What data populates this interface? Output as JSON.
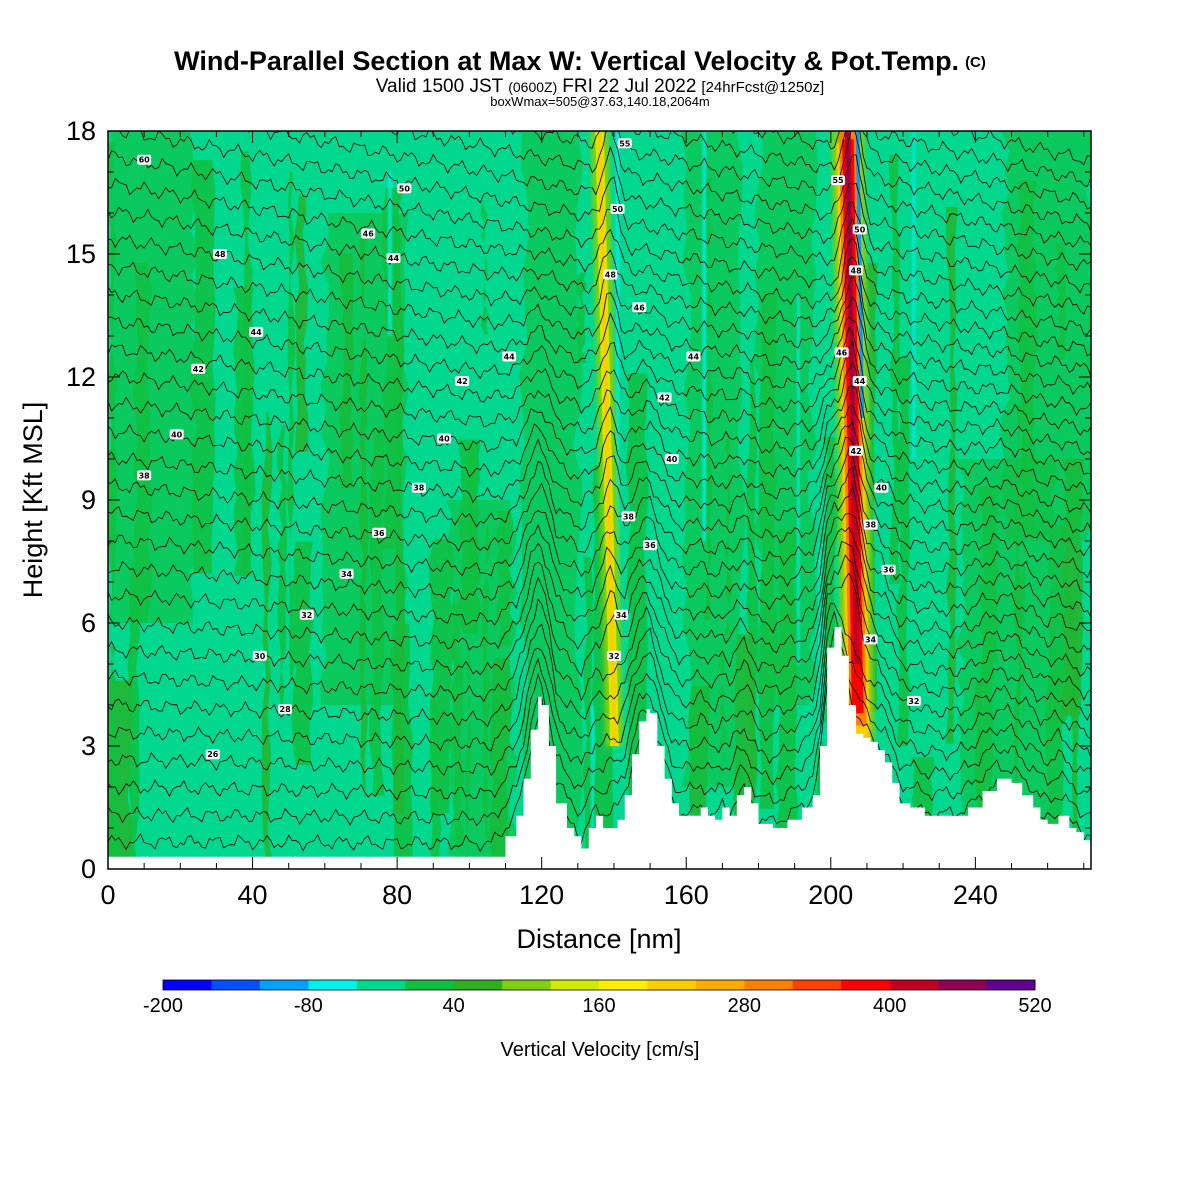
{
  "chart_data": {
    "type": "heatmap",
    "title": "Wind-Parallel Section at Max W: Vertical Velocity & Pot.Temp.",
    "title_mark": "(C)",
    "subtitle": {
      "part1": "Valid 1500 JST",
      "part2": "(0600Z)",
      "part3": "FRI 22 Jul 2022",
      "part4": "[24hrFcst@1250z]"
    },
    "subtitle2": "boxWmax=505@37.63,140.18,2064m",
    "xlabel": "Distance [nm]",
    "ylabel": "Height [Kft MSL]",
    "xlim": [
      0,
      272
    ],
    "ylim": [
      0,
      18
    ],
    "xticks": [
      0,
      40,
      80,
      120,
      160,
      200,
      240
    ],
    "yticks": [
      0,
      3,
      6,
      9,
      12,
      15,
      18
    ],
    "colorbar": {
      "title": "Vertical Velocity [cm/s]",
      "min": -200,
      "max": 520,
      "step": 40,
      "tick_labels": [
        "-200",
        "-80",
        "40",
        "160",
        "280",
        "400",
        "520"
      ],
      "colors": [
        "#0000ff",
        "#0050ff",
        "#00a0ff",
        "#00f0f0",
        "#00d890",
        "#10bf40",
        "#30b020",
        "#80d010",
        "#d0ea00",
        "#ffee00",
        "#ffcc00",
        "#ffaa00",
        "#ff7f00",
        "#ff4000",
        "#ff0000",
        "#c00020",
        "#900050",
        "#600090"
      ]
    },
    "terrain_profile": {
      "x": [
        0,
        106,
        110,
        113,
        115,
        117,
        119,
        120,
        122,
        124,
        127,
        129,
        131,
        133,
        135,
        137,
        139,
        141,
        143,
        145,
        147,
        149,
        150,
        152,
        154,
        156,
        158,
        160,
        162,
        164,
        166,
        168,
        170,
        172,
        174,
        176,
        178,
        180,
        184,
        188,
        192,
        195,
        197,
        199,
        201,
        203,
        205,
        207,
        209,
        211,
        213,
        215,
        217,
        219,
        222,
        226,
        230,
        234,
        238,
        242,
        246,
        250,
        253,
        256,
        258,
        260,
        263,
        266,
        268,
        270,
        272
      ],
      "y": [
        0.3,
        0.3,
        0.8,
        1.3,
        2.2,
        3.4,
        4.2,
        4.0,
        3.0,
        1.6,
        1.0,
        0.8,
        0.5,
        1.0,
        1.3,
        1.0,
        1.0,
        1.2,
        1.8,
        2.8,
        3.6,
        3.9,
        3.8,
        3.0,
        2.2,
        1.6,
        1.3,
        1.3,
        1.3,
        1.5,
        1.3,
        1.2,
        1.5,
        1.3,
        1.8,
        2.0,
        1.6,
        1.1,
        1.0,
        1.2,
        1.5,
        1.8,
        3.0,
        5.4,
        5.9,
        5.2,
        4.0,
        3.3,
        3.2,
        3.1,
        2.9,
        2.6,
        2.1,
        1.6,
        1.5,
        1.3,
        1.3,
        1.3,
        1.5,
        1.9,
        2.2,
        2.1,
        1.8,
        1.5,
        1.2,
        1.1,
        1.3,
        1.0,
        0.9,
        0.7,
        0.7
      ]
    },
    "updrafts": [
      {
        "x": 137.5,
        "peak_w": 200
      },
      {
        "x": 207,
        "peak_w": 505
      }
    ],
    "theta_contours": [
      "26",
      "28",
      "30",
      "32",
      "34",
      "36",
      "38",
      "40",
      "42",
      "44",
      "46",
      "48",
      "50"
    ],
    "theta_labels": [
      {
        "text": "60",
        "x": 10,
        "y": 17.3
      },
      {
        "text": "48",
        "x": 31,
        "y": 15.0
      },
      {
        "text": "44",
        "x": 41,
        "y": 13.1
      },
      {
        "text": "42",
        "x": 25,
        "y": 12.2
      },
      {
        "text": "40",
        "x": 19,
        "y": 10.6
      },
      {
        "text": "38",
        "x": 10,
        "y": 9.6
      },
      {
        "text": "46",
        "x": 72,
        "y": 15.5
      },
      {
        "text": "44",
        "x": 79,
        "y": 14.9
      },
      {
        "text": "50",
        "x": 82,
        "y": 16.6
      },
      {
        "text": "44",
        "x": 111,
        "y": 12.5
      },
      {
        "text": "42",
        "x": 98,
        "y": 11.9
      },
      {
        "text": "40",
        "x": 93,
        "y": 10.5
      },
      {
        "text": "38",
        "x": 86,
        "y": 9.3
      },
      {
        "text": "36",
        "x": 75,
        "y": 8.2
      },
      {
        "text": "34",
        "x": 66,
        "y": 7.2
      },
      {
        "text": "32",
        "x": 55,
        "y": 6.2
      },
      {
        "text": "30",
        "x": 42,
        "y": 5.2
      },
      {
        "text": "28",
        "x": 49,
        "y": 3.9
      },
      {
        "text": "26",
        "x": 29,
        "y": 2.8
      },
      {
        "text": "55",
        "x": 143,
        "y": 17.7
      },
      {
        "text": "50",
        "x": 141,
        "y": 16.1
      },
      {
        "text": "48",
        "x": 139,
        "y": 14.5
      },
      {
        "text": "46",
        "x": 147,
        "y": 13.7
      },
      {
        "text": "44",
        "x": 162,
        "y": 12.5
      },
      {
        "text": "42",
        "x": 154,
        "y": 11.5
      },
      {
        "text": "40",
        "x": 156,
        "y": 10.0
      },
      {
        "text": "38",
        "x": 144,
        "y": 8.6
      },
      {
        "text": "36",
        "x": 150,
        "y": 7.9
      },
      {
        "text": "34",
        "x": 142,
        "y": 6.2
      },
      {
        "text": "32",
        "x": 140,
        "y": 5.2
      },
      {
        "text": "55",
        "x": 202,
        "y": 16.8
      },
      {
        "text": "50",
        "x": 208,
        "y": 15.6
      },
      {
        "text": "48",
        "x": 207,
        "y": 14.6
      },
      {
        "text": "46",
        "x": 203,
        "y": 12.6
      },
      {
        "text": "44",
        "x": 208,
        "y": 11.9
      },
      {
        "text": "42",
        "x": 207,
        "y": 10.2
      },
      {
        "text": "40",
        "x": 214,
        "y": 9.3
      },
      {
        "text": "38",
        "x": 211,
        "y": 8.4
      },
      {
        "text": "36",
        "x": 216,
        "y": 7.3
      },
      {
        "text": "34",
        "x": 211,
        "y": 5.6
      },
      {
        "text": "32",
        "x": 223,
        "y": 4.1
      }
    ]
  }
}
